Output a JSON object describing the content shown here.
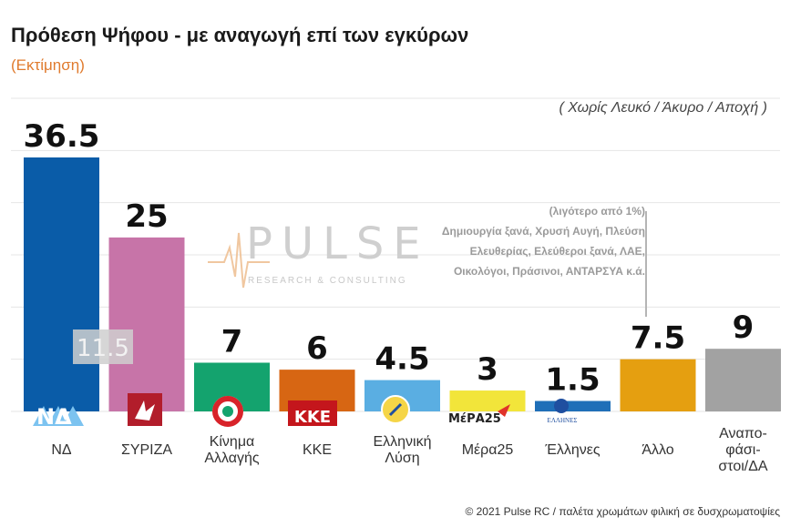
{
  "header": {
    "title": "Πρόθεση Ψήφου - με αναγωγή επί των εγκύρων",
    "subtitle": "(Εκτίμηση)",
    "note": "( Χωρίς Λευκό / Άκυρο / Αποχή )"
  },
  "others_note": {
    "heading": "(λιγότερο από 1%)",
    "lines": [
      "Δημιουργία ξανά, Χρυσή Αυγή, Πλεύση",
      "Ελευθερίας, Ελεύθεροι ξανά, ΛΑΕ,",
      "Οικολόγοι, Πράσινοι, ΑΝΤΑΡΣΥΑ  κ.ά."
    ]
  },
  "watermark": {
    "brand": "PULSE",
    "tagline": "RESEARCH & CONSULTING"
  },
  "footer": "© 2021 Pulse RC  /  παλέτα χρωμάτων φιλική σε δυσχρωματοψίες",
  "chart_data": {
    "type": "bar",
    "categories": [
      "ΝΔ",
      "ΣΥΡΙΖΑ",
      "Κίνημα Αλλαγής",
      "ΚΚΕ",
      "Ελληνική Λύση",
      "Μέρα25",
      "Έλληνες",
      "Άλλο",
      "Αναποφάσιστοι/ΔΑ"
    ],
    "category_lines": [
      [
        "ΝΔ"
      ],
      [
        "ΣΥΡΙΖΑ"
      ],
      [
        "Κίνημα",
        "Αλλαγής"
      ],
      [
        "ΚΚΕ"
      ],
      [
        "Ελληνική",
        "Λύση"
      ],
      [
        "Μέρα25"
      ],
      [
        "Έλληνες"
      ],
      [
        "Άλλο"
      ],
      [
        "Αναπο-",
        "φάσι-",
        "στοι/ΔΑ"
      ]
    ],
    "values": [
      36.5,
      25,
      7,
      6,
      4.5,
      3,
      1.5,
      7.5,
      9
    ],
    "value_labels": [
      "36.5",
      "25",
      "7",
      "6",
      "4.5",
      "3",
      "1.5",
      "7.5",
      "9"
    ],
    "colors": [
      "#0a5ca8",
      "#c774a8",
      "#14a36e",
      "#d76613",
      "#5aaee2",
      "#f2e53a",
      "#1f6fb8",
      "#e59f10",
      "#a2a2a2"
    ],
    "gap_annotation": {
      "between": [
        "ΝΔ",
        "ΣΥΡΙΖΑ"
      ],
      "value": 11.5,
      "label": "11.5"
    },
    "ylim": [
      0,
      45
    ],
    "grid": true
  }
}
